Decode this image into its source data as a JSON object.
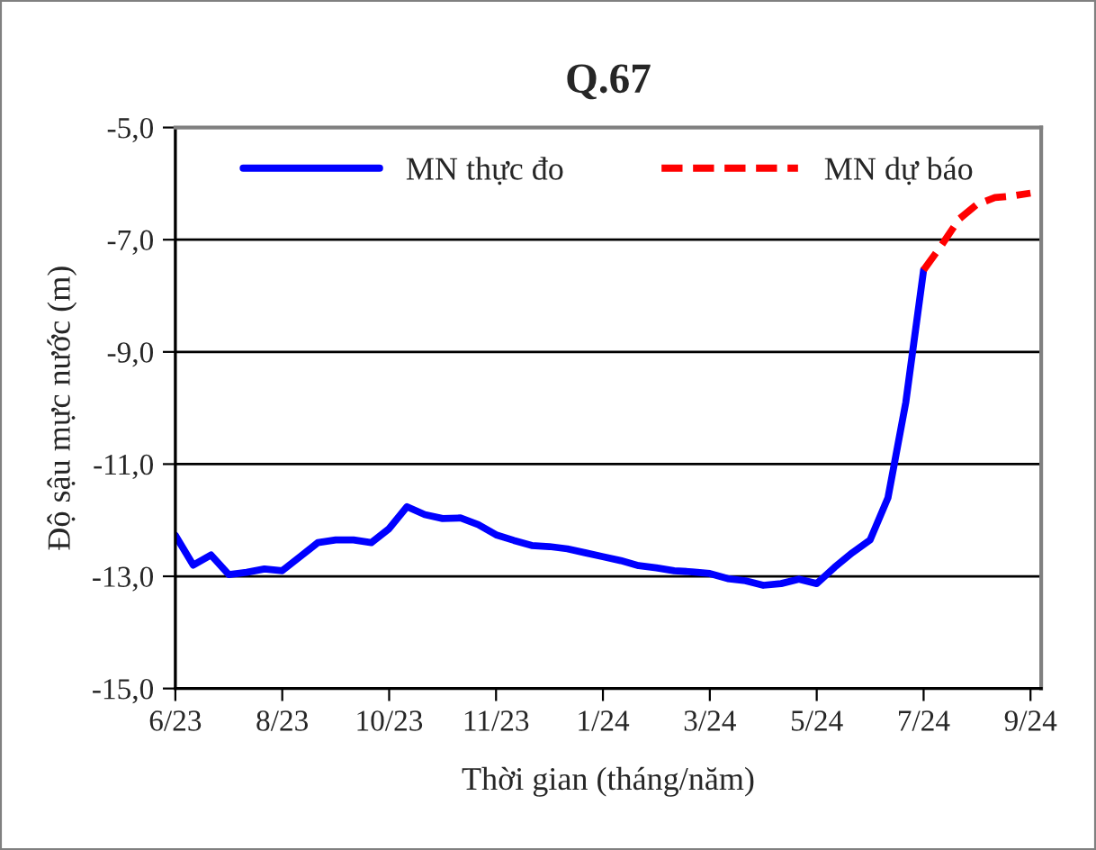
{
  "chart_data": {
    "type": "line",
    "title": "Q.67",
    "xlabel": "Thời gian (tháng/năm)",
    "ylabel": "Độ sậu mực nước (m)",
    "categories": [
      "6/23",
      null,
      null,
      null,
      null,
      null,
      "8/23",
      null,
      null,
      null,
      null,
      null,
      "10/23",
      null,
      null,
      null,
      null,
      null,
      "11/23",
      null,
      null,
      null,
      null,
      null,
      "1/24",
      null,
      null,
      null,
      null,
      null,
      "3/24",
      null,
      null,
      null,
      null,
      null,
      "5/24",
      null,
      null,
      null,
      null,
      null,
      "7/24",
      null,
      null,
      null,
      null,
      null,
      "9/24"
    ],
    "ylim": [
      -15,
      -5
    ],
    "yticks": [
      {
        "value": -15,
        "label": "-15,0"
      },
      {
        "value": -13,
        "label": "-13,0"
      },
      {
        "value": -11,
        "label": "-11,0"
      },
      {
        "value": -9,
        "label": "-9,0"
      },
      {
        "value": -7,
        "label": "-7,0"
      },
      {
        "value": -5,
        "label": "-5,0"
      }
    ],
    "grid": "y",
    "legend": "top",
    "marker": "none",
    "series": [
      {
        "name": "MN thực đo",
        "color": "#0000ff",
        "line_style": "solid",
        "values": [
          -12.27,
          -12.8,
          -12.62,
          -12.97,
          -12.93,
          -12.87,
          -12.9,
          -12.65,
          -12.4,
          -12.35,
          -12.35,
          -12.4,
          -12.15,
          -11.76,
          -11.9,
          -11.97,
          -11.96,
          -12.08,
          -12.26,
          -12.36,
          -12.45,
          -12.47,
          -12.51,
          -12.58,
          -12.65,
          -12.72,
          -12.81,
          -12.85,
          -12.9,
          -12.92,
          -12.95,
          -13.04,
          -13.08,
          -13.16,
          -13.13,
          -13.05,
          -13.13,
          -12.84,
          -12.58,
          -12.35,
          -11.6,
          -9.9,
          -7.54,
          null,
          null,
          null,
          null,
          null,
          null
        ]
      },
      {
        "name": "MN dự báo",
        "color": "#ff0000",
        "line_style": "dashed",
        "values": [
          null,
          null,
          null,
          null,
          null,
          null,
          null,
          null,
          null,
          null,
          null,
          null,
          null,
          null,
          null,
          null,
          null,
          null,
          null,
          null,
          null,
          null,
          null,
          null,
          null,
          null,
          null,
          null,
          null,
          null,
          null,
          null,
          null,
          null,
          null,
          null,
          null,
          null,
          null,
          null,
          null,
          null,
          -7.54,
          -7.1,
          -6.63,
          -6.37,
          -6.25,
          -6.22,
          -6.17
        ]
      }
    ]
  }
}
